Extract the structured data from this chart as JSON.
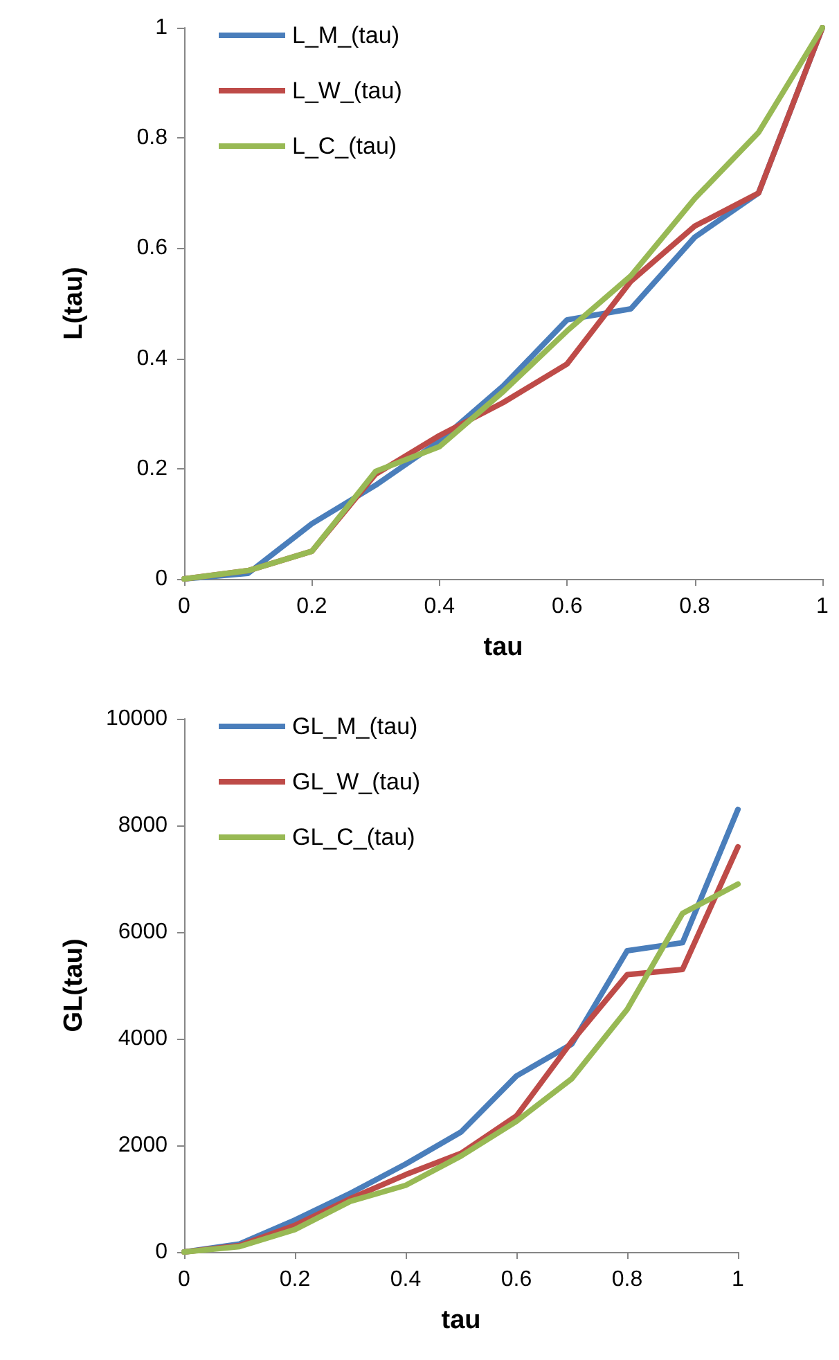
{
  "chart_data": [
    {
      "type": "line",
      "xlabel": "tau",
      "ylabel": "L(tau)",
      "x": [
        0,
        0.1,
        0.2,
        0.3,
        0.4,
        0.5,
        0.6,
        0.7,
        0.8,
        0.9,
        1
      ],
      "xlim": [
        0,
        1
      ],
      "xticks": [
        0,
        0.2,
        0.4,
        0.6,
        0.8,
        1
      ],
      "ylim": [
        0,
        1
      ],
      "yticks": [
        0,
        0.2,
        0.4,
        0.6,
        0.8,
        1
      ],
      "grid": false,
      "legend": "top left",
      "marker": "none",
      "line_style": "solid",
      "series": [
        {
          "name": "L_M_(tau)",
          "color": "#4a7ebb",
          "values": [
            0,
            0.01,
            0.1,
            0.17,
            0.25,
            0.35,
            0.47,
            0.49,
            0.62,
            0.7,
            1
          ]
        },
        {
          "name": "L_W_(tau)",
          "color": "#be4b48",
          "values": [
            0,
            0.015,
            0.05,
            0.19,
            0.26,
            0.32,
            0.39,
            0.54,
            0.64,
            0.7,
            1
          ]
        },
        {
          "name": "L_C_(tau)",
          "color": "#98b954",
          "values": [
            0,
            0.015,
            0.05,
            0.195,
            0.24,
            0.34,
            0.45,
            0.55,
            0.69,
            0.81,
            1
          ]
        }
      ]
    },
    {
      "type": "line",
      "xlabel": "tau",
      "ylabel": "GL(tau)",
      "x": [
        0,
        0.1,
        0.2,
        0.3,
        0.4,
        0.5,
        0.6,
        0.7,
        0.8,
        0.9,
        1
      ],
      "xlim": [
        0,
        1
      ],
      "xticks": [
        0,
        0.2,
        0.4,
        0.6,
        0.8,
        1
      ],
      "ylim": [
        0,
        10000
      ],
      "yticks": [
        0,
        2000,
        4000,
        6000,
        8000,
        10000
      ],
      "grid": false,
      "legend": "top left",
      "marker": "none",
      "line_style": "solid",
      "series": [
        {
          "name": "GL_M_(tau)",
          "color": "#4a7ebb",
          "values": [
            0,
            150,
            600,
            1100,
            1650,
            2250,
            3300,
            3900,
            5650,
            5800,
            8300
          ]
        },
        {
          "name": "GL_W_(tau)",
          "color": "#be4b48",
          "values": [
            0,
            120,
            500,
            1000,
            1450,
            1850,
            2550,
            3950,
            5200,
            5300,
            7600
          ]
        },
        {
          "name": "GL_C_(tau)",
          "color": "#98b954",
          "values": [
            0,
            100,
            420,
            950,
            1250,
            1800,
            2450,
            3250,
            4550,
            6350,
            6900
          ]
        }
      ]
    }
  ]
}
